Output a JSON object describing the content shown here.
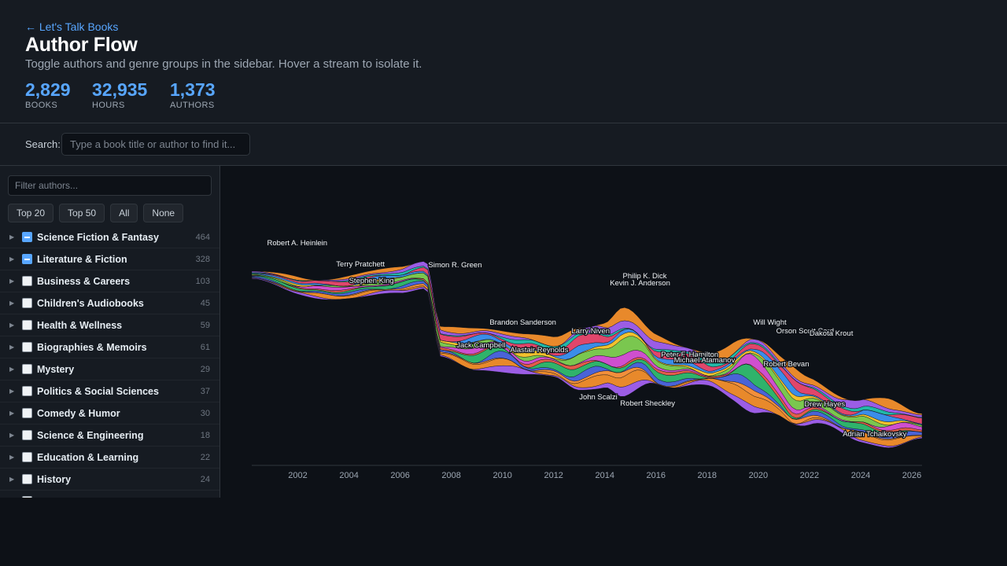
{
  "header": {
    "back_link": "← Let's Talk Books",
    "title": "Author Flow",
    "subtitle": "Toggle authors and genre groups in the sidebar. Hover a stream to isolate it.",
    "stats": [
      {
        "value": "2,829",
        "label": "BOOKS"
      },
      {
        "value": "32,935",
        "label": "HOURS"
      },
      {
        "value": "1,373",
        "label": "AUTHORS"
      }
    ]
  },
  "search": {
    "label": "Search:",
    "placeholder": "Type a book title or author to find it..."
  },
  "sidebar": {
    "filter_placeholder": "Filter authors...",
    "buttons": [
      "Top 20",
      "Top 50",
      "All",
      "None"
    ],
    "genres": [
      {
        "label": "Science Fiction & Fantasy",
        "count": "464",
        "checked": true
      },
      {
        "label": "Literature & Fiction",
        "count": "328",
        "checked": true
      },
      {
        "label": "Business & Careers",
        "count": "103",
        "checked": false
      },
      {
        "label": "Children's Audiobooks",
        "count": "45",
        "checked": false
      },
      {
        "label": "Health & Wellness",
        "count": "59",
        "checked": false
      },
      {
        "label": "Biographies & Memoirs",
        "count": "61",
        "checked": false
      },
      {
        "label": "Mystery",
        "count": "29",
        "checked": false
      },
      {
        "label": "Politics & Social Sciences",
        "count": "37",
        "checked": false
      },
      {
        "label": "Comedy & Humor",
        "count": "30",
        "checked": false
      },
      {
        "label": "Science & Engineering",
        "count": "18",
        "checked": false
      },
      {
        "label": "Education & Learning",
        "count": "22",
        "checked": false
      },
      {
        "label": "History",
        "count": "24",
        "checked": false
      }
    ]
  },
  "chart_data": {
    "type": "area",
    "x_ticks": [
      "2002",
      "2004",
      "2006",
      "2008",
      "2010",
      "2012",
      "2014",
      "2016",
      "2018",
      "2020",
      "2022",
      "2024",
      "2026"
    ],
    "xlim": [
      2000.2,
      2026.4
    ],
    "annotations": [
      {
        "text": "Robert A. Heinlein",
        "x": 2000.8
      },
      {
        "text": "Terry Pratchett",
        "x": 2003.5
      },
      {
        "text": "Stephen King",
        "x": 2004.0
      },
      {
        "text": "Simon R. Green",
        "x": 2007.1
      },
      {
        "text": "Brandon Sanderson",
        "x": 2009.5
      },
      {
        "text": "Jack Campbell",
        "x": 2008.2
      },
      {
        "text": "Alastair Reynolds",
        "x": 2010.3
      },
      {
        "text": "Larry Niven",
        "x": 2012.7
      },
      {
        "text": "Philip K. Dick",
        "x": 2014.7
      },
      {
        "text": "Kevin J. Anderson",
        "x": 2014.2
      },
      {
        "text": "John Scalzi",
        "x": 2013.0
      },
      {
        "text": "Robert Sheckley",
        "x": 2014.6
      },
      {
        "text": "Peter F. Hamilton",
        "x": 2016.2
      },
      {
        "text": "Michael Atamanov",
        "x": 2016.7
      },
      {
        "text": "Will Wight",
        "x": 2019.8
      },
      {
        "text": "Orson Scott Card",
        "x": 2020.7
      },
      {
        "text": "Dakota Krout",
        "x": 2022.0
      },
      {
        "text": "Robert Bevan",
        "x": 2020.2
      },
      {
        "text": "Drew Hayes",
        "x": 2021.8
      },
      {
        "text": "Adrian Tchaikovsky",
        "x": 2023.3
      }
    ],
    "colors": [
      "#e8892b",
      "#9b5de5",
      "#22b8a8",
      "#e0466b",
      "#3b8de8",
      "#f2c12e",
      "#7ac74f",
      "#cf4fcf",
      "#e25c4a",
      "#2fb36b",
      "#4a63d8",
      "#f28f3b"
    ]
  }
}
